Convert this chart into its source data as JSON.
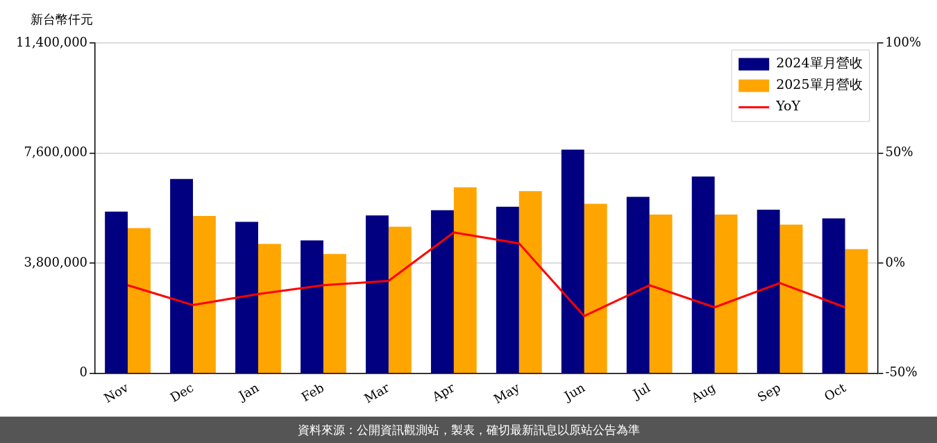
{
  "chart_data": {
    "type": "bar",
    "ylabel": "新台幣仟元",
    "categories": [
      "Nov",
      "Dec",
      "Jan",
      "Feb",
      "Mar",
      "Apr",
      "May",
      "Jun",
      "Jul",
      "Aug",
      "Sep",
      "Oct"
    ],
    "series": [
      {
        "name": "2024單月營收",
        "color": "#000080",
        "values": [
          5580000,
          6710000,
          5230000,
          4590000,
          5450000,
          5630000,
          5750000,
          7720000,
          6090000,
          6790000,
          5650000,
          5350000
        ]
      },
      {
        "name": "2025單月營收",
        "color": "#ffa500",
        "values": [
          5010000,
          5430000,
          4470000,
          4120000,
          5060000,
          6420000,
          6290000,
          5850000,
          5480000,
          5480000,
          5130000,
          4290000
        ]
      },
      {
        "name": "YoY",
        "type": "line",
        "axis": "y2",
        "color": "#ff0000",
        "marker": "none",
        "values": [
          -10,
          -19,
          -14,
          -10,
          -8,
          14,
          9,
          -24,
          -10,
          -20,
          -9,
          -20
        ]
      }
    ],
    "ylim": [
      0,
      11400000
    ],
    "yticks": [
      {
        "value": 0,
        "label": "0"
      },
      {
        "value": 3800000,
        "label": "3,800,000"
      },
      {
        "value": 7600000,
        "label": "7,600,000"
      },
      {
        "value": 11400000,
        "label": "11,400,000"
      }
    ],
    "y2lim": [
      -50,
      100
    ],
    "y2ticks": [
      {
        "value": -50,
        "label": "-50%"
      },
      {
        "value": 0,
        "label": "0%"
      },
      {
        "value": 50,
        "label": "50%"
      },
      {
        "value": 100,
        "label": "100%"
      }
    ],
    "grid": "y",
    "legend": "top right",
    "annotations": [
      "資料來源：公開資訊觀測站，製表，確切最新訊息以原站公告為準"
    ]
  }
}
